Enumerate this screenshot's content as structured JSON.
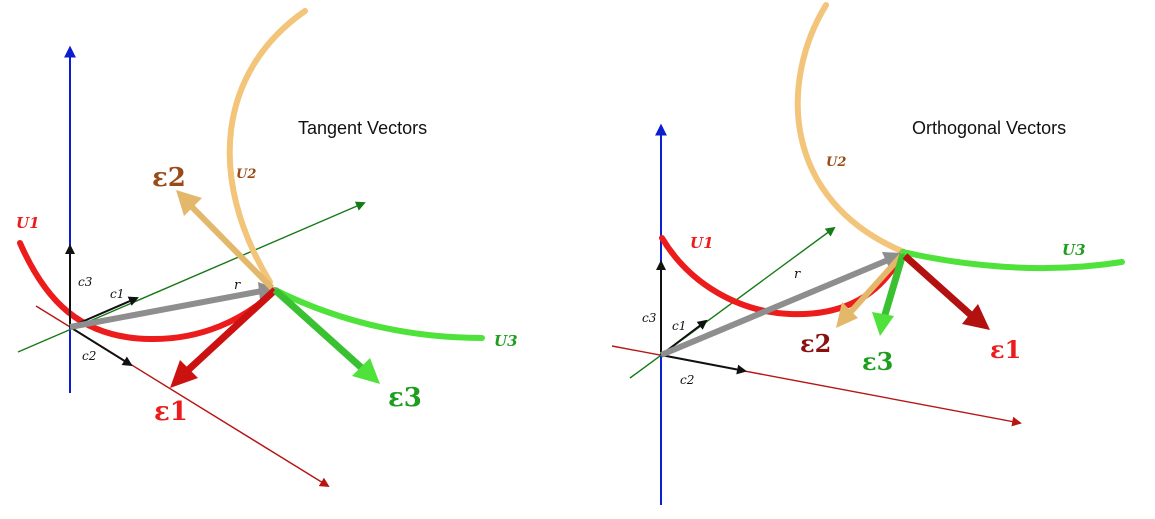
{
  "panels": {
    "tangent": {
      "title": "Tangent Vectors",
      "curve_labels": {
        "u1": "U1",
        "u2": "U2",
        "u3": "U3"
      },
      "vector_labels": {
        "e1": "ε1",
        "e2": "ε2",
        "e3": "ε3"
      },
      "basis_labels": {
        "c1": "c1",
        "c2": "c2",
        "c3": "c3",
        "r": "r"
      }
    },
    "orthogonal": {
      "title": "Orthogonal Vectors",
      "curve_labels": {
        "u1": "U1",
        "u2": "U2",
        "u3": "U3"
      },
      "vector_labels": {
        "e1": "ε1",
        "e2": "ε2",
        "e3": "ε3"
      },
      "basis_labels": {
        "c1": "c1",
        "c2": "c2",
        "c3": "c3",
        "r": "r"
      }
    }
  },
  "colors": {
    "u1": "#ec1c1c",
    "u2": "#f2c57a",
    "u3": "#4ee23a",
    "e1_dark": "#cc1111",
    "e2_brown": "#9a4a14",
    "e3_green": "#1e9e1e",
    "axis_blue": "#0b1fd0",
    "axis_red": "#b81414",
    "axis_green": "#177a17",
    "position_gray": "#8e8e8e",
    "basis_black": "#111111"
  }
}
